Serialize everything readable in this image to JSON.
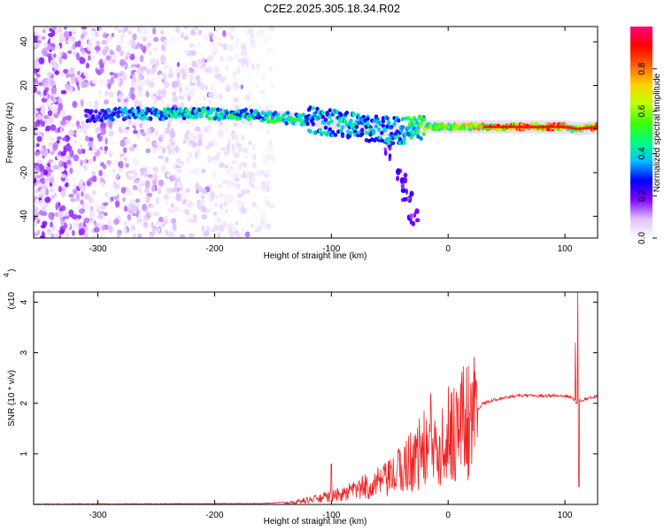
{
  "title": "C2E2.2025.305.18.34.R02",
  "chart_data": [
    {
      "type": "heatmap",
      "xlabel": "Height of straight line (km)",
      "ylabel": "Frequency (Hz)",
      "xlim": [
        -355,
        128
      ],
      "ylim": [
        -50,
        47
      ],
      "xticks": [
        -300,
        -200,
        -100,
        0,
        100
      ],
      "yticks": [
        -40,
        -20,
        0,
        20,
        40
      ],
      "grid": false,
      "colorbar": {
        "label": "Normalized spectral amplitude",
        "range": [
          0,
          1
        ],
        "ticks": [
          0.0,
          0.2,
          0.4,
          0.6,
          0.8
        ],
        "colormap": "rainbow",
        "stops": [
          "#ffffff",
          "#e0c0ff",
          "#8000ff",
          "#0000ff",
          "#00c0ff",
          "#00ff80",
          "#40ff00",
          "#c0ff00",
          "#ffd000",
          "#ff6000",
          "#ff0000",
          "#ff0080"
        ]
      },
      "ridge": [
        {
          "x": -310,
          "y": 6,
          "amp": 0.3
        },
        {
          "x": -280,
          "y": 7,
          "amp": 0.35
        },
        {
          "x": -250,
          "y": 7,
          "amp": 0.4
        },
        {
          "x": -220,
          "y": 7,
          "amp": 0.45
        },
        {
          "x": -190,
          "y": 7,
          "amp": 0.45
        },
        {
          "x": -160,
          "y": 6,
          "amp": 0.45
        },
        {
          "x": -140,
          "y": 5,
          "amp": 0.5
        },
        {
          "x": -120,
          "y": 4,
          "amp": 0.45
        },
        {
          "x": -100,
          "y": 3,
          "amp": 0.4
        },
        {
          "x": -80,
          "y": 1,
          "amp": 0.4
        },
        {
          "x": -60,
          "y": 0,
          "amp": 0.4
        },
        {
          "x": -40,
          "y": -1,
          "amp": 0.4
        },
        {
          "x": -20,
          "y": 1,
          "amp": 0.6
        },
        {
          "x": 0,
          "y": 1,
          "amp": 0.65
        },
        {
          "x": 20,
          "y": 1,
          "amp": 0.7
        },
        {
          "x": 40,
          "y": 1,
          "amp": 0.85
        },
        {
          "x": 60,
          "y": 1,
          "amp": 0.85
        },
        {
          "x": 80,
          "y": 1,
          "amp": 0.85
        },
        {
          "x": 100,
          "y": 1,
          "amp": 0.85
        },
        {
          "x": 110,
          "y": 0,
          "amp": 0.6
        },
        {
          "x": 128,
          "y": 1,
          "amp": 0.85
        }
      ],
      "tail": [
        {
          "x": -50,
          "y": -10
        },
        {
          "x": -40,
          "y": -20
        },
        {
          "x": -35,
          "y": -30
        },
        {
          "x": -30,
          "y": -40
        }
      ]
    },
    {
      "type": "line",
      "xlabel": "Height of straight line (km)",
      "ylabel": "SNR (10 * v/v)",
      "yscale_label": "(x10",
      "yscale_exponent": "4",
      "xlim": [
        -355,
        128
      ],
      "ylim": [
        0,
        4.2
      ],
      "xticks": [
        -300,
        -200,
        -100,
        0,
        100
      ],
      "yticks": [
        1,
        2,
        3,
        4
      ],
      "grid": false,
      "series": [
        {
          "color": "#ee2222",
          "envelope": [
            {
              "x": -355,
              "y": 0.0
            },
            {
              "x": -160,
              "y": 0.01
            },
            {
              "x": -130,
              "y": 0.05
            },
            {
              "x": -110,
              "y": 0.12
            },
            {
              "x": -90,
              "y": 0.2
            },
            {
              "x": -70,
              "y": 0.35
            },
            {
              "x": -50,
              "y": 0.5
            },
            {
              "x": -35,
              "y": 0.8
            },
            {
              "x": -20,
              "y": 1.1
            },
            {
              "x": 0,
              "y": 1.4
            },
            {
              "x": 20,
              "y": 1.75
            },
            {
              "x": 30,
              "y": 2.0
            },
            {
              "x": 45,
              "y": 2.1
            },
            {
              "x": 60,
              "y": 2.15
            },
            {
              "x": 80,
              "y": 2.15
            },
            {
              "x": 100,
              "y": 2.15
            },
            {
              "x": 107,
              "y": 2.1
            },
            {
              "x": 110,
              "y": 2.0
            },
            {
              "x": 112,
              "y": 2.05
            },
            {
              "x": 128,
              "y": 2.15
            }
          ],
          "noise_x": [
            -140,
            25
          ],
          "spikes": [
            {
              "x": -15,
              "y": 2.2
            },
            {
              "x": -5,
              "y": 1.9
            },
            {
              "x": -100,
              "y": 0.8
            },
            {
              "x": 109,
              "y": 3.2
            },
            {
              "x": 111,
              "y": 4.2
            },
            {
              "x": 112,
              "y": 0.35
            }
          ]
        }
      ]
    }
  ]
}
